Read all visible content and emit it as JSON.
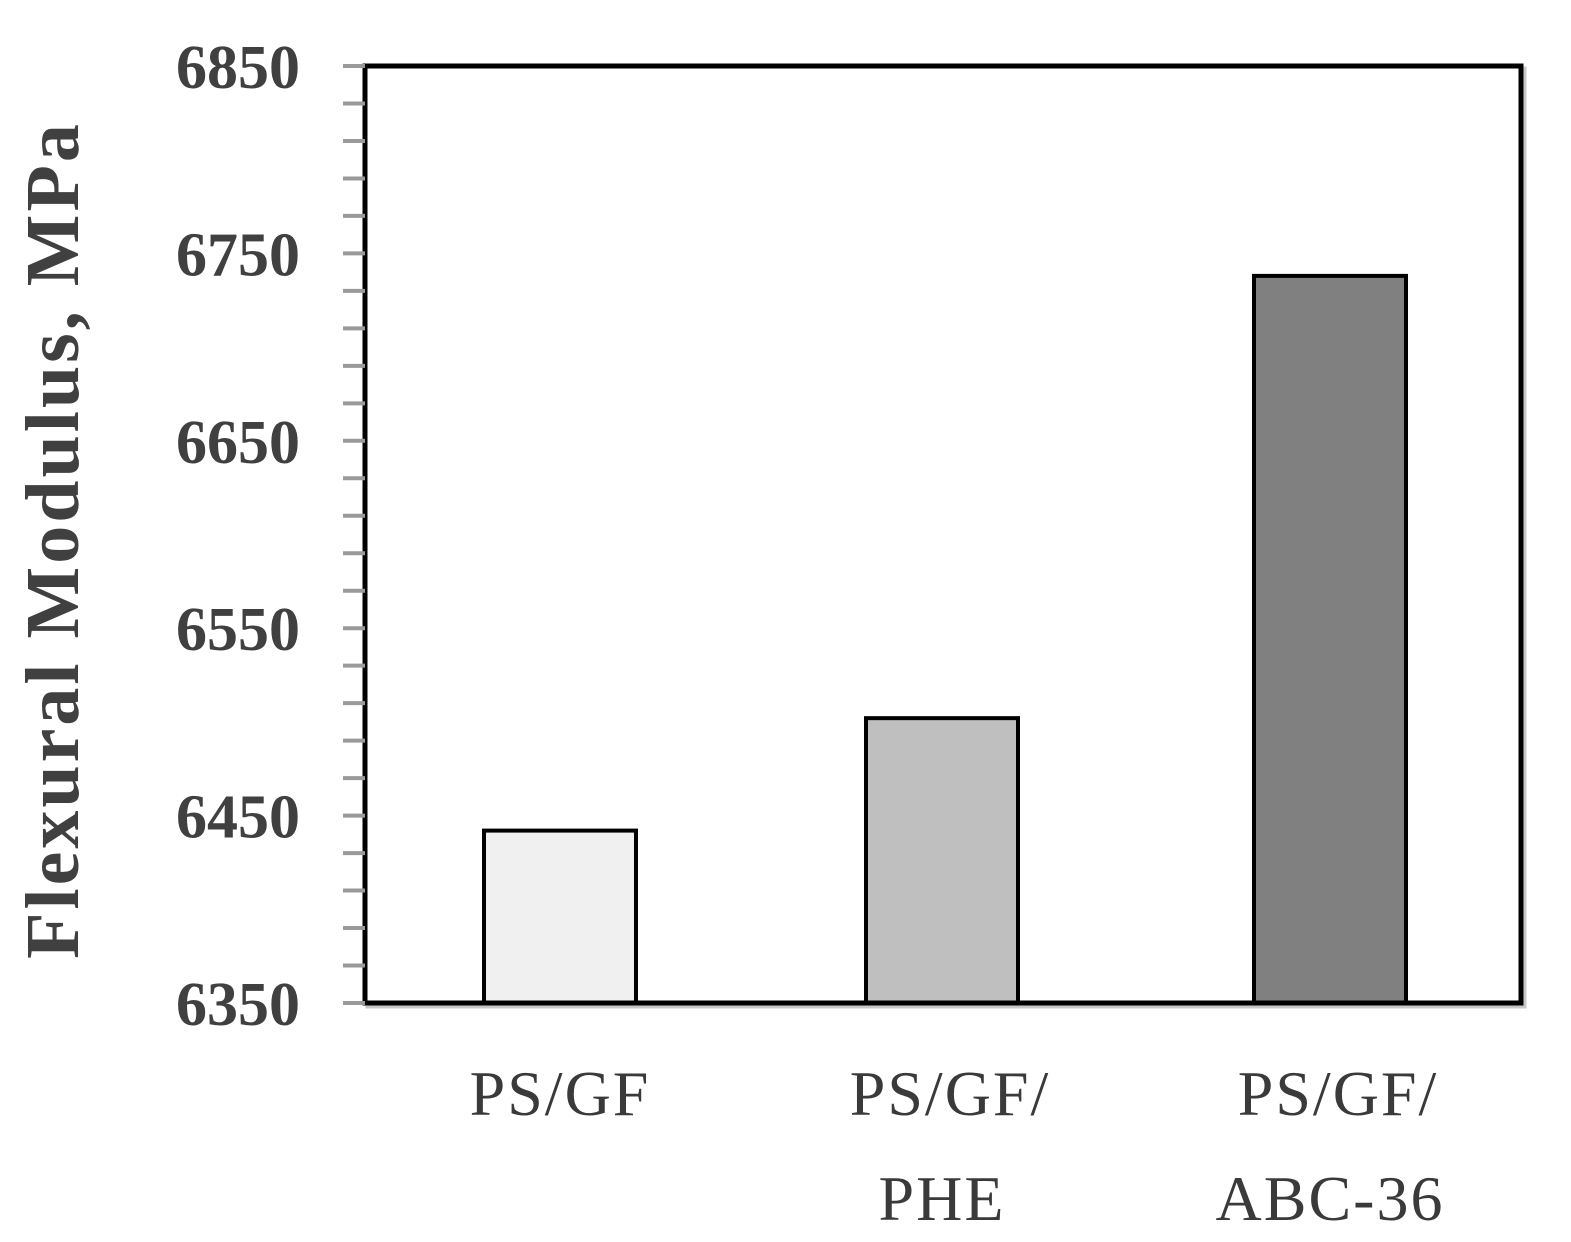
{
  "chart_data": {
    "type": "bar",
    "categories": [
      [
        "PS/GF"
      ],
      [
        "PS/GF/",
        "PHE"
      ],
      [
        "PS/GF/",
        "ABC-36"
      ]
    ],
    "values": [
      6442,
      6502,
      6738
    ],
    "bar_colors": [
      "#f0f0f0",
      "#bfbfbf",
      "#808080"
    ],
    "ylabel": "Flexural Modulus, MPa",
    "ylim": [
      6350,
      6850
    ],
    "yticks": [
      6350,
      6450,
      6550,
      6650,
      6750,
      6850
    ],
    "ytick_labels": [
      "6350",
      "6450",
      "6550",
      "6650",
      "6750",
      "6850"
    ],
    "minor_tick_step": 20,
    "grid": false,
    "legend": "none"
  }
}
